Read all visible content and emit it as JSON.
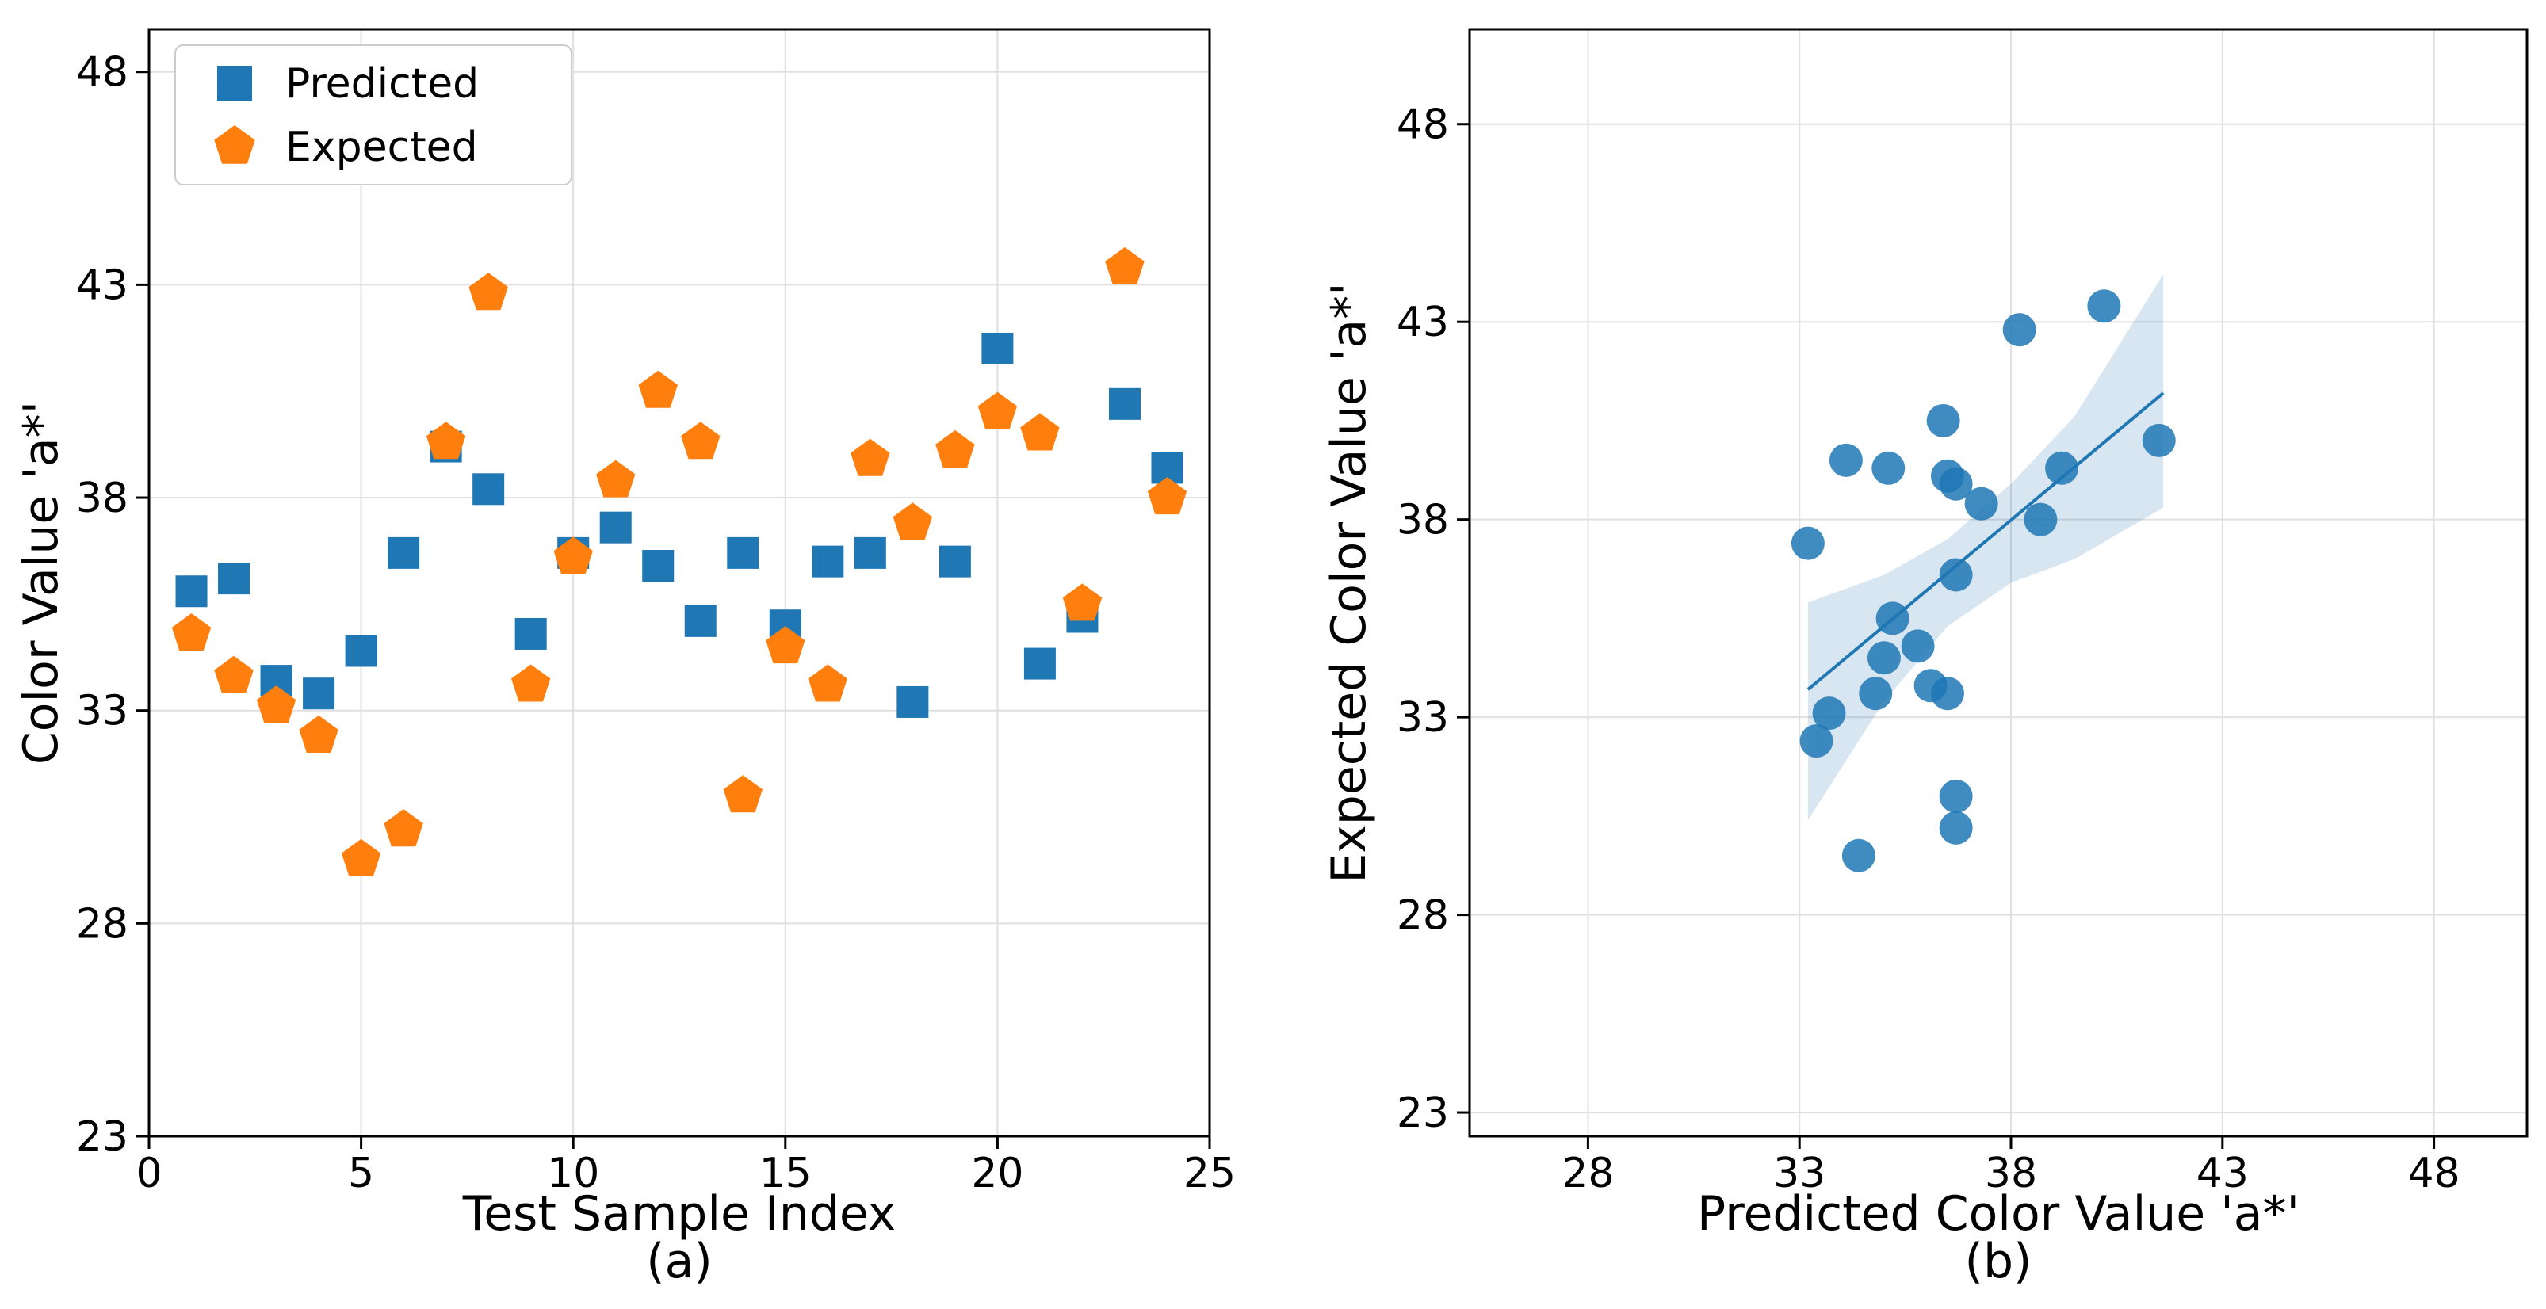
{
  "figure": {
    "background": "#ffffff",
    "grid_color": "#e0e0e0",
    "spine_color": "#000000"
  },
  "chart_data": [
    {
      "type": "scatter",
      "panel": "a",
      "caption": "(a)",
      "title": "",
      "xlabel": "Test Sample Index",
      "ylabel": "Color Value 'a*'",
      "xlim": [
        0,
        25
      ],
      "ylim": [
        23,
        49
      ],
      "xticks": [
        0,
        5,
        10,
        15,
        20,
        25
      ],
      "yticks": [
        23,
        28,
        33,
        38,
        43,
        48
      ],
      "grid": true,
      "legend": {
        "position": "upper left",
        "items": [
          {
            "label": "Predicted",
            "marker": "square",
            "color": "#1f77b4"
          },
          {
            "label": "Expected",
            "marker": "pentagon",
            "color": "#ff7f0e"
          }
        ]
      },
      "x": [
        1,
        2,
        3,
        4,
        5,
        6,
        7,
        8,
        9,
        10,
        11,
        12,
        13,
        14,
        15,
        16,
        17,
        18,
        19,
        20,
        21,
        22,
        23,
        24
      ],
      "series": [
        {
          "name": "Predicted",
          "marker": "square",
          "color": "#1f77b4",
          "values": [
            35.8,
            36.1,
            33.7,
            33.4,
            34.4,
            36.7,
            39.2,
            38.2,
            34.8,
            36.7,
            37.3,
            36.4,
            35.1,
            36.7,
            35.0,
            36.5,
            36.7,
            33.2,
            36.5,
            41.5,
            34.1,
            35.2,
            40.2,
            38.7
          ]
        },
        {
          "name": "Expected",
          "marker": "pentagon",
          "color": "#ff7f0e",
          "values": [
            34.8,
            33.8,
            33.1,
            32.4,
            29.5,
            30.2,
            39.3,
            42.8,
            33.6,
            36.6,
            38.4,
            40.5,
            39.3,
            31.0,
            34.5,
            33.6,
            38.9,
            37.4,
            39.1,
            40.0,
            39.5,
            35.5,
            43.4,
            38.0
          ]
        }
      ]
    },
    {
      "type": "scatter",
      "panel": "b",
      "caption": "(b)",
      "title": "",
      "xlabel": "Predicted Color Value 'a*'",
      "ylabel": "Expected Color Value 'a*'",
      "xlim": [
        25.2,
        50.2
      ],
      "ylim": [
        22.4,
        50.4
      ],
      "xticks": [
        28,
        33,
        38,
        43,
        48
      ],
      "yticks": [
        23,
        28,
        33,
        38,
        43,
        48
      ],
      "grid": true,
      "marker": "circle",
      "color": "#1f77b4",
      "x": [
        35.8,
        36.1,
        33.7,
        33.4,
        34.4,
        36.7,
        39.2,
        38.2,
        34.8,
        36.7,
        37.3,
        36.4,
        35.1,
        36.7,
        35.0,
        36.5,
        36.7,
        33.2,
        36.5,
        41.5,
        34.1,
        35.2,
        40.2,
        38.7
      ],
      "y": [
        34.8,
        33.8,
        33.1,
        32.4,
        29.5,
        30.2,
        39.3,
        42.8,
        33.6,
        36.6,
        38.4,
        40.5,
        39.3,
        31.0,
        34.5,
        33.6,
        38.9,
        37.4,
        39.1,
        40.0,
        39.5,
        35.5,
        43.4,
        38.0
      ],
      "regression": {
        "color": "#1f77b4",
        "line": {
          "x": [
            33.2,
            41.6
          ],
          "y": [
            33.7,
            41.2
          ]
        },
        "band": {
          "x": [
            33.2,
            35.0,
            36.5,
            38.0,
            39.5,
            41.6
          ],
          "upper": [
            35.9,
            36.6,
            37.5,
            38.9,
            40.6,
            44.2
          ],
          "lower": [
            30.4,
            33.4,
            35.3,
            36.4,
            37.0,
            38.3
          ],
          "opacity": 0.18
        }
      }
    }
  ]
}
